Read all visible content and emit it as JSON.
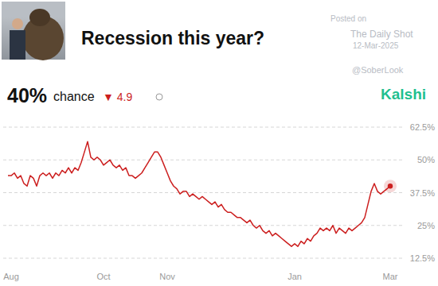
{
  "chart_data": {
    "type": "line",
    "title": "Recession this year?",
    "headline": "40%",
    "headline_label": "chance",
    "change": "▼ 4.9",
    "brand": "Kalshi",
    "watermark": [
      "Posted on",
      "The Daily Shot",
      "12-Mar-2025",
      "@SoberLook"
    ],
    "categories": [
      null,
      "Aug",
      null,
      null,
      null,
      null,
      null,
      null,
      null,
      null,
      null,
      null,
      null,
      null,
      null,
      null,
      null,
      null,
      null,
      null,
      null,
      null,
      null,
      null,
      null,
      null,
      null,
      null,
      null,
      null,
      "Oct",
      null,
      null,
      null,
      null,
      null,
      null,
      null,
      null,
      null,
      null,
      null,
      null,
      null,
      null,
      null,
      null,
      null,
      null,
      null,
      "Nov",
      null,
      null,
      null,
      null,
      null,
      null,
      null,
      null,
      null,
      null,
      null,
      null,
      null,
      null,
      null,
      null,
      null,
      null,
      null,
      null,
      null,
      null,
      null,
      null,
      null,
      null,
      null,
      null,
      null,
      null,
      null,
      null,
      null,
      null,
      null,
      null,
      null,
      null,
      null,
      "Jan",
      null,
      null,
      null,
      null,
      null,
      null,
      null,
      null,
      null,
      null,
      null,
      null,
      null,
      null,
      null,
      null,
      null,
      null,
      null,
      null,
      null,
      null,
      null,
      null,
      null,
      null,
      null,
      null,
      null,
      "Mar"
    ],
    "values": [
      44,
      44,
      45,
      43,
      44,
      41,
      40,
      44,
      43,
      40,
      44,
      45,
      44,
      45,
      43,
      45,
      44,
      46,
      45,
      47,
      45,
      47,
      46,
      49,
      53,
      57,
      51,
      50,
      51,
      50,
      48,
      49,
      50,
      48,
      47,
      48,
      46,
      47,
      44,
      44,
      43,
      44,
      45,
      47,
      49,
      51,
      53,
      53,
      51,
      48,
      45,
      42,
      40,
      39,
      37,
      38,
      38,
      36,
      37,
      36,
      35,
      36,
      35,
      34,
      33,
      34,
      32,
      33,
      31,
      30,
      30,
      29,
      28,
      28,
      27,
      26,
      27,
      25,
      24,
      25,
      23,
      22,
      23,
      21,
      22,
      21,
      20,
      19,
      18,
      17,
      18,
      17,
      19,
      18,
      20,
      19,
      21,
      22,
      24,
      23,
      24,
      23,
      25,
      22,
      24,
      23,
      22,
      24,
      23,
      24,
      25,
      26,
      28,
      33,
      38,
      41,
      38,
      37,
      38,
      39,
      40
    ],
    "color": "#cc1f1f",
    "ylim": [
      12.5,
      62.5
    ],
    "yticks": [
      {
        "value": 12.5,
        "label": "12.5%"
      },
      {
        "value": 25,
        "label": "25%"
      },
      {
        "value": 37.5,
        "label": "37.5%"
      },
      {
        "value": 50,
        "label": "50%"
      },
      {
        "value": 62.5,
        "label": "62.5%"
      }
    ],
    "grid": true
  }
}
